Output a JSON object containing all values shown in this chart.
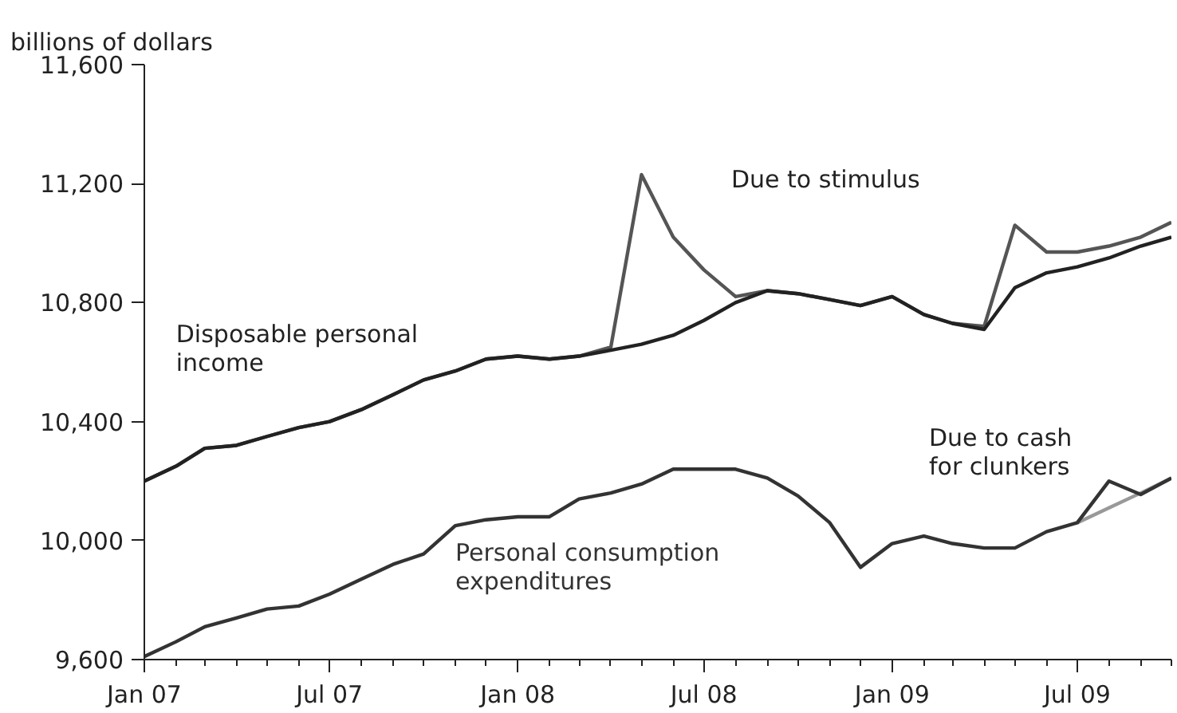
{
  "chart_data": {
    "type": "line",
    "ylabel": "billions of dollars",
    "x": [
      "2007-01",
      "2007-02",
      "2007-03",
      "2007-04",
      "2007-05",
      "2007-06",
      "2007-07",
      "2007-08",
      "2007-09",
      "2007-10",
      "2007-11",
      "2007-12",
      "2008-01",
      "2008-02",
      "2008-03",
      "2008-04",
      "2008-05",
      "2008-06",
      "2008-07",
      "2008-08",
      "2008-09",
      "2008-10",
      "2008-11",
      "2008-12",
      "2009-01",
      "2009-02",
      "2009-03",
      "2009-04",
      "2009-05",
      "2009-06",
      "2009-07",
      "2009-08",
      "2009-09",
      "2009-10"
    ],
    "series": [
      {
        "color": "#555555",
        "values": [
          10200,
          10250,
          10310,
          10320,
          10350,
          10380,
          10400,
          10440,
          10490,
          10540,
          10570,
          10610,
          10620,
          10610,
          10620,
          10650,
          11230,
          11020,
          10910,
          10820,
          10840,
          10830,
          10810,
          10790,
          10820,
          10760,
          10730,
          10720,
          11060,
          10970,
          10970,
          10990,
          11020,
          11070
        ]
      },
      {
        "name": "Disposable personal income",
        "color": "#222222",
        "values": [
          10200,
          10250,
          10310,
          10320,
          10350,
          10380,
          10400,
          10440,
          10490,
          10540,
          10570,
          10610,
          10620,
          10610,
          10620,
          10640,
          10660,
          10690,
          10740,
          10800,
          10840,
          10830,
          10810,
          10790,
          10820,
          10760,
          10730,
          10710,
          10850,
          10900,
          10920,
          10950,
          10990,
          11020
        ]
      },
      {
        "color": "#999999",
        "values": [
          null,
          null,
          null,
          null,
          null,
          null,
          null,
          null,
          null,
          null,
          null,
          null,
          null,
          null,
          null,
          null,
          null,
          null,
          null,
          null,
          null,
          null,
          null,
          null,
          null,
          null,
          null,
          null,
          null,
          null,
          10060,
          10110,
          10160,
          10210
        ]
      },
      {
        "name": "Personal consumption expenditures",
        "color": "#333333",
        "values": [
          9610,
          9660,
          9710,
          9740,
          9770,
          9780,
          9820,
          9870,
          9920,
          9955,
          10050,
          10070,
          10080,
          10080,
          10140,
          10160,
          10190,
          10240,
          10240,
          10240,
          10210,
          10150,
          10060,
          9910,
          9990,
          10015,
          9990,
          9975,
          9975,
          10030,
          10060,
          10200,
          10155,
          10210
        ]
      }
    ],
    "xlim": [
      "2007-01",
      "2009-10"
    ],
    "ylim": [
      9600,
      11600
    ],
    "xticks": [
      {
        "value": "2007-01",
        "label": "Jan 07"
      },
      {
        "value": "2007-02",
        "label": null
      },
      {
        "value": "2007-03",
        "label": null
      },
      {
        "value": "2007-04",
        "label": null
      },
      {
        "value": "2007-05",
        "label": null
      },
      {
        "value": "2007-06",
        "label": null
      },
      {
        "value": "2007-07",
        "label": "Jul 07"
      },
      {
        "value": "2007-08",
        "label": null
      },
      {
        "value": "2007-09",
        "label": null
      },
      {
        "value": "2007-10",
        "label": null
      },
      {
        "value": "2007-11",
        "label": null
      },
      {
        "value": "2007-12",
        "label": null
      },
      {
        "value": "2008-01",
        "label": "Jan 08"
      },
      {
        "value": "2008-02",
        "label": null
      },
      {
        "value": "2008-03",
        "label": null
      },
      {
        "value": "2008-04",
        "label": null
      },
      {
        "value": "2008-05",
        "label": null
      },
      {
        "value": "2008-06",
        "label": null
      },
      {
        "value": "2008-07",
        "label": "Jul 08"
      },
      {
        "value": "2008-08",
        "label": null
      },
      {
        "value": "2008-09",
        "label": null
      },
      {
        "value": "2008-10",
        "label": null
      },
      {
        "value": "2008-11",
        "label": null
      },
      {
        "value": "2008-12",
        "label": null
      },
      {
        "value": "2009-01",
        "label": "Jan 09"
      },
      {
        "value": "2009-02",
        "label": null
      },
      {
        "value": "2009-03",
        "label": null
      },
      {
        "value": "2009-04",
        "label": null
      },
      {
        "value": "2009-05",
        "label": null
      },
      {
        "value": "2009-06",
        "label": null
      },
      {
        "value": "2009-07",
        "label": "Jul 09"
      },
      {
        "value": "2009-08",
        "label": null
      },
      {
        "value": "2009-09",
        "label": null
      },
      {
        "value": "2009-10",
        "label": null
      }
    ],
    "yticks": [
      {
        "value": 9600,
        "label": "9,600"
      },
      {
        "value": 10000,
        "label": "10,000"
      },
      {
        "value": 10400,
        "label": "10,400"
      },
      {
        "value": 10800,
        "label": "10,800"
      },
      {
        "value": 11200,
        "label": "11,200"
      },
      {
        "value": 11600,
        "label": "11,600"
      }
    ],
    "annotations": [
      "Due to stimulus",
      "Due to cash for clunkers"
    ],
    "grid": false,
    "legend": false,
    "line_style": "solid"
  }
}
